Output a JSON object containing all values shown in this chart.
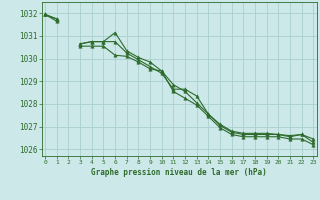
{
  "title": "Graphe pression niveau de la mer (hPa)",
  "x": [
    0,
    1,
    2,
    3,
    4,
    5,
    6,
    7,
    8,
    9,
    10,
    11,
    12,
    13,
    14,
    15,
    16,
    17,
    18,
    19,
    20,
    21,
    22,
    23
  ],
  "line_top": [
    1031.95,
    1031.75,
    null,
    1030.65,
    1030.75,
    1030.75,
    1031.15,
    1030.35,
    1030.05,
    1029.85,
    1029.45,
    1028.85,
    1028.55,
    1028.05,
    1027.55,
    1027.1,
    1026.8,
    1026.7,
    1026.7,
    1026.7,
    1026.65,
    1026.6,
    1026.65,
    1026.45
  ],
  "line_mid": [
    1031.95,
    1031.75,
    null,
    1030.65,
    1030.75,
    1030.75,
    1030.75,
    1030.25,
    1029.95,
    1029.65,
    1029.35,
    1028.65,
    1028.65,
    1028.35,
    1027.55,
    1027.05,
    1026.75,
    1026.65,
    1026.65,
    1026.65,
    1026.65,
    1026.55,
    1026.65,
    1026.3
  ],
  "line_bot": [
    1031.95,
    1031.65,
    null,
    1030.55,
    1030.55,
    1030.55,
    1030.15,
    1030.1,
    1029.85,
    1029.55,
    1029.45,
    1028.55,
    1028.25,
    1027.95,
    1027.45,
    1026.95,
    1026.65,
    1026.55,
    1026.55,
    1026.55,
    1026.55,
    1026.45,
    1026.45,
    1026.2
  ],
  "ylim": [
    1025.7,
    1032.5
  ],
  "yticks": [
    1026,
    1027,
    1028,
    1029,
    1030,
    1031,
    1032
  ],
  "xticks": [
    0,
    1,
    2,
    3,
    4,
    5,
    6,
    7,
    8,
    9,
    10,
    11,
    12,
    13,
    14,
    15,
    16,
    17,
    18,
    19,
    20,
    21,
    22,
    23
  ],
  "line_color": "#2d6b2d",
  "bg_color": "#cce8e8",
  "grid_color": "#aacfcf",
  "marker": "^",
  "marker_size": 2.5,
  "line_width": 0.8,
  "tick_color": "#2d6b2d",
  "xlabel_color": "#2d6b2d"
}
